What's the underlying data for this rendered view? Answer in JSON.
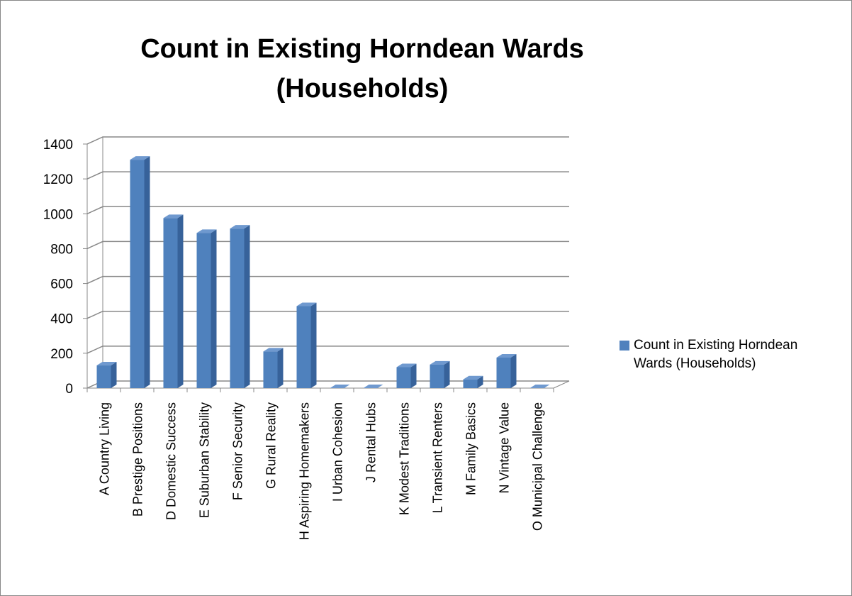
{
  "chart_data": {
    "type": "bar3d",
    "title": "Count in Existing Horndean Wards (Households)",
    "categories": [
      "A Country Living",
      "B Prestige Positions",
      "D Domestic Success",
      "E Suburban Stability",
      "F Senior Security",
      "G Rural Reality",
      "H Aspiring Homemakers",
      "I Urban Cohesion",
      "J Rental Hubs",
      "K Modest Traditions",
      "L Transient Renters",
      "M Family Basics",
      "N Vintage Value",
      "O Municipal Challenge"
    ],
    "series": [
      {
        "name": "Count in Existing Horndean Wards (Households)",
        "color": "#4f81bd",
        "values": [
          130,
          1310,
          975,
          890,
          915,
          210,
          470,
          0,
          0,
          120,
          135,
          50,
          175,
          0
        ]
      }
    ],
    "ylim": [
      0,
      1400
    ],
    "yticks": [
      0,
      200,
      400,
      600,
      800,
      1000,
      1200,
      1400
    ],
    "grid": true,
    "legend": "right"
  }
}
